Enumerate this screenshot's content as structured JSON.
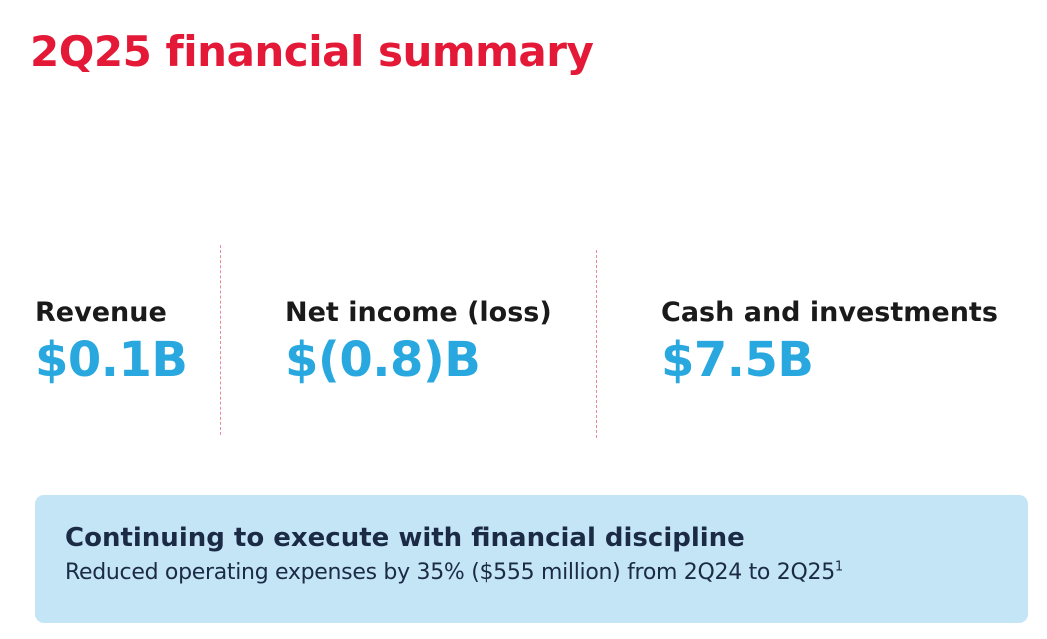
{
  "title": "2Q25 financial summary",
  "metrics": [
    {
      "label": "Revenue",
      "value": "$0.1B"
    },
    {
      "label": "Net income (loss)",
      "value": "$(0.8)B"
    },
    {
      "label": "Cash and investments",
      "value": "$7.5B"
    }
  ],
  "callout": {
    "heading": "Continuing to execute with financial discipline",
    "body": "Reduced operating expenses by 35% ($555 million) from 2Q24 to 2Q25",
    "footnote": "1"
  },
  "colors": {
    "title": "#e31937",
    "value": "#29a8e0",
    "callout_background": "#c3e5f6",
    "divider": "#e88a99"
  }
}
